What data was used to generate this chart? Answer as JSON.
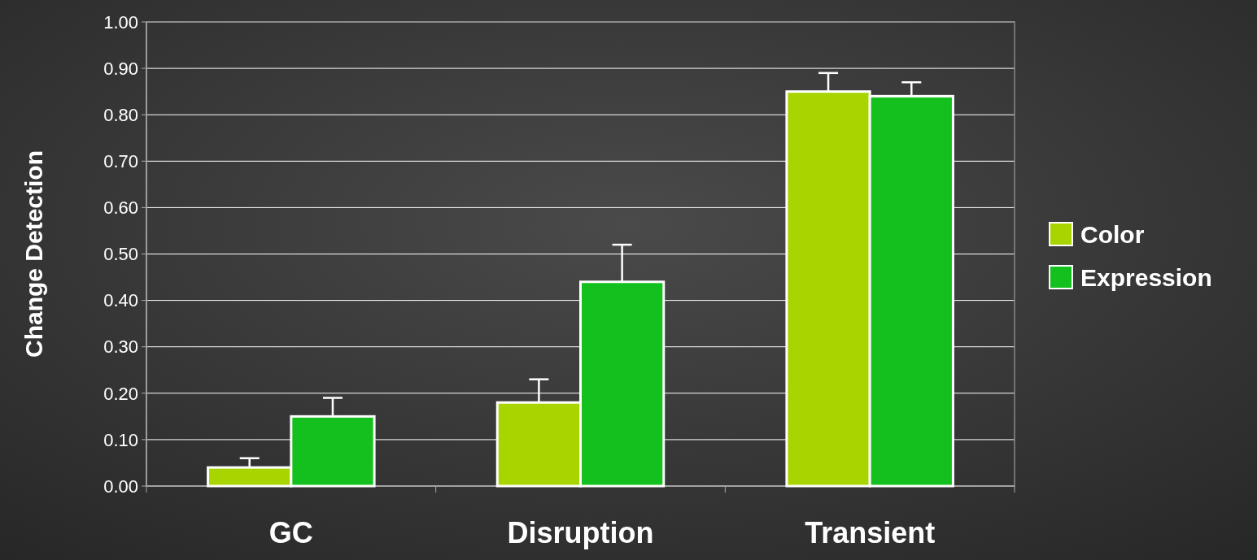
{
  "chart_data": {
    "type": "bar",
    "ylabel": "Change Detection",
    "categories": [
      "GC",
      "Disruption",
      "Transient"
    ],
    "series": [
      {
        "name": "Color",
        "color": "#a8d400",
        "values": [
          0.04,
          0.18,
          0.85
        ],
        "errors": [
          0.02,
          0.05,
          0.04
        ]
      },
      {
        "name": "Expression",
        "color": "#14c01e",
        "values": [
          0.15,
          0.44,
          0.84
        ],
        "errors": [
          0.04,
          0.08,
          0.03
        ]
      }
    ],
    "ylim": [
      0,
      1
    ],
    "yticks": [
      {
        "value": 0,
        "label": "0.00"
      },
      {
        "value": 0.1,
        "label": "0.10"
      },
      {
        "value": 0.2,
        "label": "0.20"
      },
      {
        "value": 0.3,
        "label": "0.30"
      },
      {
        "value": 0.4,
        "label": "0.40"
      },
      {
        "value": 0.5,
        "label": "0.50"
      },
      {
        "value": 0.6,
        "label": "0.60"
      },
      {
        "value": 0.7,
        "label": "0.70"
      },
      {
        "value": 0.8,
        "label": "0.80"
      },
      {
        "value": 0.9,
        "label": "0.90"
      },
      {
        "value": 1,
        "label": "1.00"
      }
    ],
    "grid": "y",
    "legend": "right"
  }
}
